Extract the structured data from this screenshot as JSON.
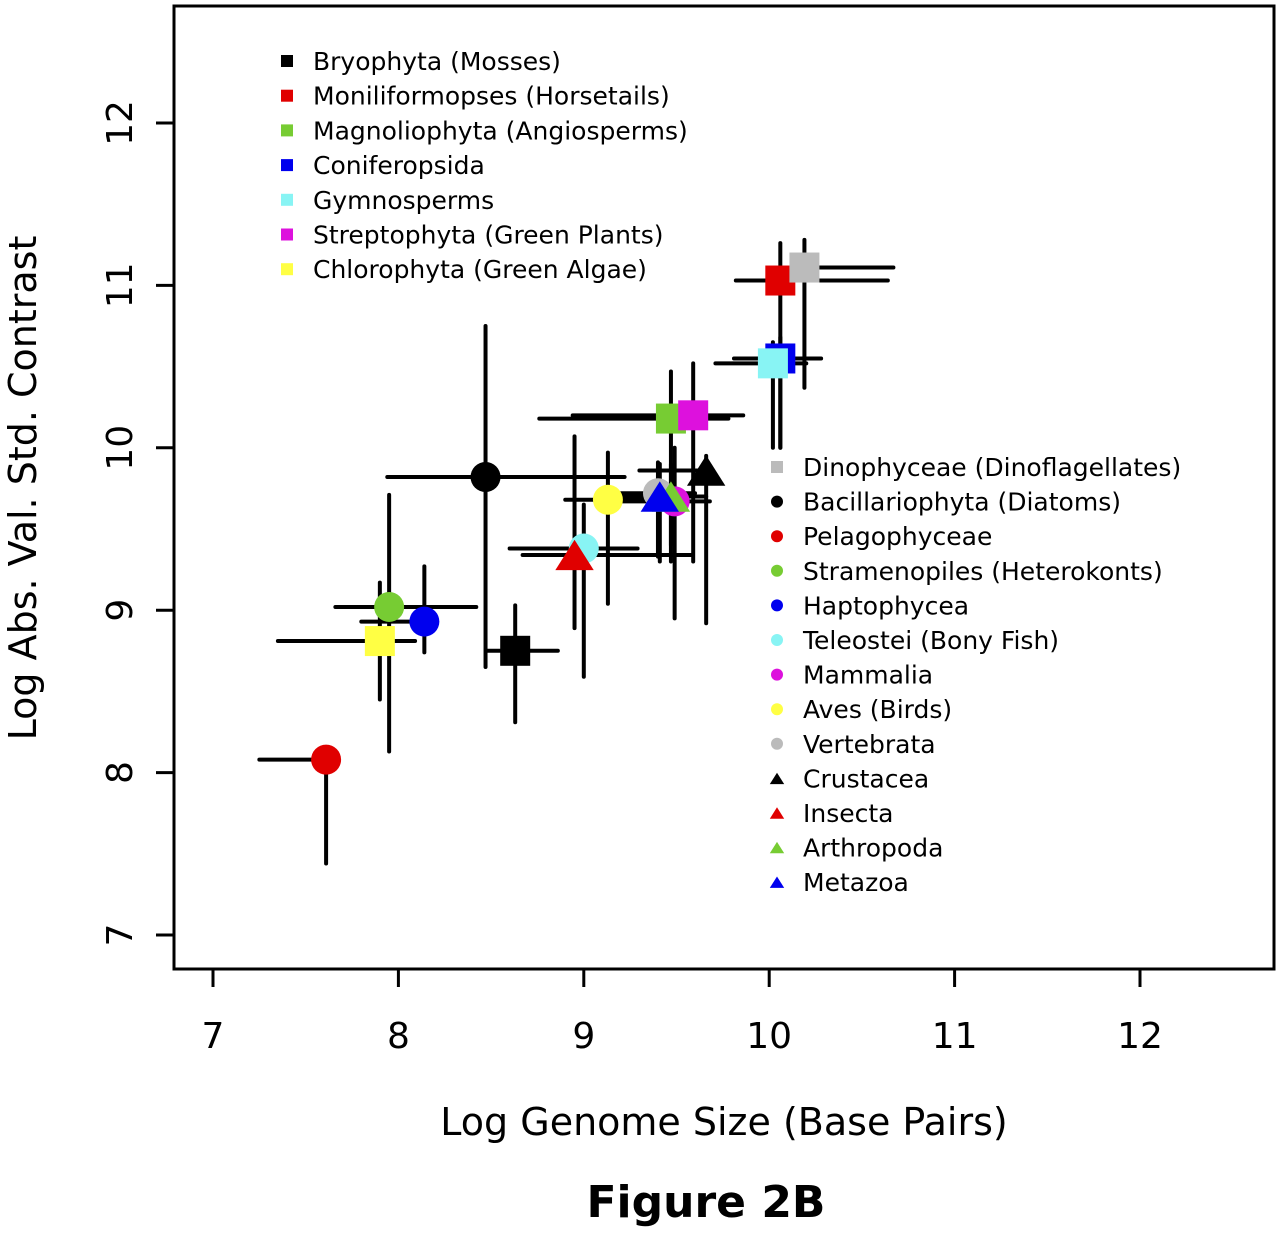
{
  "chart_data": {
    "type": "scatter",
    "title": "",
    "caption": "Figure 2B",
    "xlabel": "Log Genome Size (Base Pairs)",
    "ylabel": "Log Abs. Val. Std. Contrast",
    "xlim": [
      6.8,
      12.7
    ],
    "ylim": [
      6.8,
      12.7
    ],
    "xticks": [
      7,
      8,
      9,
      10,
      11,
      12
    ],
    "yticks": [
      7,
      8,
      9,
      10,
      11,
      12
    ],
    "grid": false,
    "legend_placement": [
      "top-left",
      "center-right"
    ],
    "series": [
      {
        "name": "Bryophyta (Mosses)",
        "legend": 1,
        "marker": "square",
        "color": "#000000",
        "x": 8.63,
        "y": 8.75,
        "xerr": [
          8.48,
          8.86
        ],
        "yerr": [
          8.31,
          9.03
        ]
      },
      {
        "name": "Moniliformopses (Horsetails)",
        "legend": 1,
        "marker": "square",
        "color": "#e00000",
        "x": 10.06,
        "y": 11.03,
        "xerr": [
          9.82,
          10.64
        ],
        "yerr": [
          10.0,
          11.26
        ]
      },
      {
        "name": "Magnoliophyta (Angiosperms)",
        "legend": 1,
        "marker": "square",
        "color": "#77cc33",
        "x": 9.47,
        "y": 10.18,
        "xerr": [
          8.76,
          9.78
        ],
        "yerr": [
          9.4,
          10.47
        ]
      },
      {
        "name": "Coniferopsida",
        "legend": 1,
        "marker": "square",
        "color": "#0000ee",
        "x": 10.06,
        "y": 10.55,
        "xerr": [
          9.81,
          10.28
        ],
        "yerr": [
          10.0,
          10.68
        ]
      },
      {
        "name": "Gymnosperms",
        "legend": 1,
        "marker": "square",
        "color": "#88f4f4",
        "x": 10.02,
        "y": 10.52,
        "xerr": [
          9.71,
          10.2
        ],
        "yerr": [
          10.0,
          10.65
        ]
      },
      {
        "name": "Streptophyta (Green Plants)",
        "legend": 1,
        "marker": "square",
        "color": "#dd11dd",
        "x": 9.59,
        "y": 10.2,
        "xerr": [
          8.94,
          9.86
        ],
        "yerr": [
          9.3,
          10.52
        ]
      },
      {
        "name": "Chlorophyta (Green Algae)",
        "legend": 1,
        "marker": "square",
        "color": "#ffff44",
        "x": 7.9,
        "y": 8.81,
        "xerr": [
          7.35,
          8.09
        ],
        "yerr": [
          8.45,
          9.17
        ]
      },
      {
        "name": "Dinophyceae (Dinoflagellates)",
        "legend": 2,
        "marker": "square",
        "color": "#bbbbbb",
        "x": 10.19,
        "y": 11.11,
        "xerr": [
          10.19,
          10.67
        ],
        "yerr": [
          10.37,
          11.28
        ]
      },
      {
        "name": "Bacillariophyta (Diatoms)",
        "legend": 2,
        "marker": "circle",
        "color": "#000000",
        "x": 8.47,
        "y": 9.82,
        "xerr": [
          7.94,
          9.22
        ],
        "yerr": [
          8.65,
          10.75
        ]
      },
      {
        "name": "Pelagophyceae",
        "legend": 2,
        "marker": "circle",
        "color": "#e00000",
        "x": 7.61,
        "y": 8.08,
        "xerr": [
          7.25,
          7.61
        ],
        "yerr": [
          7.44,
          8.08
        ]
      },
      {
        "name": "Stramenopiles (Heterokonts)",
        "legend": 2,
        "marker": "circle",
        "color": "#77cc33",
        "x": 7.95,
        "y": 9.02,
        "xerr": [
          7.66,
          8.42
        ],
        "yerr": [
          8.13,
          9.71
        ]
      },
      {
        "name": "Haptophycea",
        "legend": 2,
        "marker": "circle",
        "color": "#0000ee",
        "x": 8.14,
        "y": 8.93,
        "xerr": [
          7.8,
          8.14
        ],
        "yerr": [
          8.74,
          9.27
        ]
      },
      {
        "name": "Teleostei (Bony Fish)",
        "legend": 2,
        "marker": "circle",
        "color": "#88f4f4",
        "x": 9.0,
        "y": 9.38,
        "xerr": [
          8.6,
          9.29
        ],
        "yerr": [
          8.59,
          9.65
        ]
      },
      {
        "name": "Mammalia",
        "legend": 2,
        "marker": "circle",
        "color": "#dd11dd",
        "x": 9.49,
        "y": 9.67,
        "xerr": [
          9.2,
          9.68
        ],
        "yerr": [
          8.95,
          10.0
        ]
      },
      {
        "name": "Aves (Birds)",
        "legend": 2,
        "marker": "circle",
        "color": "#ffff44",
        "x": 9.13,
        "y": 9.68,
        "xerr": [
          8.9,
          9.4
        ],
        "yerr": [
          9.04,
          9.97
        ]
      },
      {
        "name": "Vertebrata",
        "legend": 2,
        "marker": "circle",
        "color": "#bbbbbb",
        "x": 9.4,
        "y": 9.72,
        "xerr": [
          9.2,
          9.6
        ],
        "yerr": [
          9.33,
          9.91
        ]
      },
      {
        "name": "Crustacea",
        "legend": 2,
        "marker": "triangle",
        "color": "#000000",
        "x": 9.66,
        "y": 9.86,
        "xerr": [
          9.3,
          9.66
        ],
        "yerr": [
          8.92,
          9.95
        ]
      },
      {
        "name": "Insecta",
        "legend": 2,
        "marker": "triangle",
        "color": "#e00000",
        "x": 8.95,
        "y": 9.34,
        "xerr": [
          8.67,
          9.58
        ],
        "yerr": [
          8.89,
          10.07
        ]
      },
      {
        "name": "Arthropoda",
        "legend": 2,
        "marker": "triangle",
        "color": "#77cc33",
        "x": 9.47,
        "y": 9.7,
        "xerr": [
          9.3,
          9.66
        ],
        "yerr": [
          9.3,
          9.9
        ]
      },
      {
        "name": "Metazoa",
        "legend": 2,
        "marker": "triangle",
        "color": "#0000ee",
        "x": 9.41,
        "y": 9.7,
        "xerr": [
          9.2,
          9.5
        ],
        "yerr": [
          9.3,
          9.9
        ]
      }
    ]
  }
}
